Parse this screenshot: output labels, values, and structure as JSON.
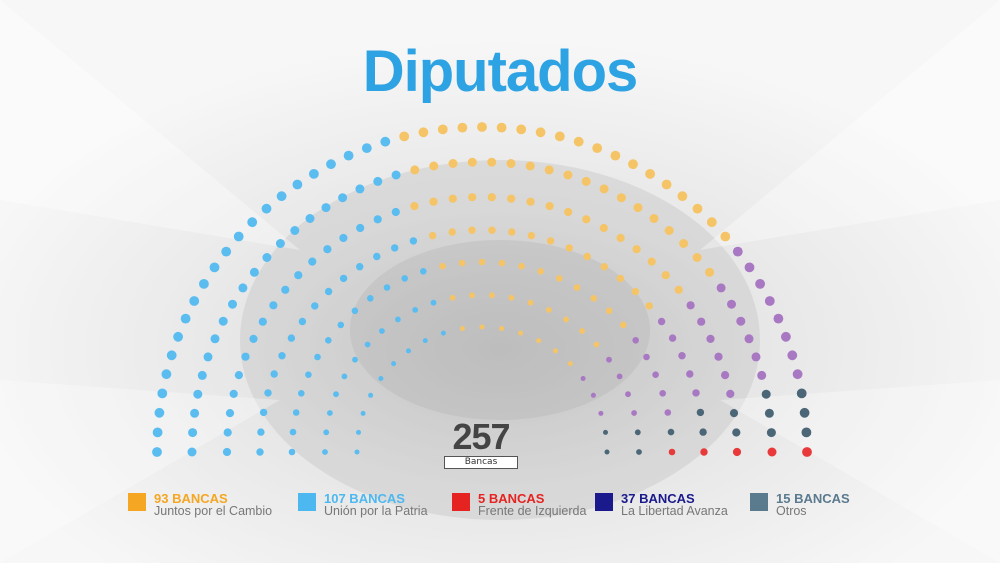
{
  "title": "Diputados",
  "total": {
    "value": "257",
    "unit": "Bancas"
  },
  "colors": {
    "juntos": "#f5a623",
    "union": "#4db8f0",
    "izquierda": "#e52421",
    "libertad": "#1a1a8c",
    "otros": "#5a7a8e",
    "title": "#2ea3e3"
  },
  "legend": [
    {
      "count_label": "93 BANCAS",
      "name": "Juntos por el Cambio",
      "color": "#f5a623",
      "dot": "#f5c466"
    },
    {
      "count_label": "107 BANCAS",
      "name": "Unión por la Patria",
      "color": "#4db8f0",
      "dot": "#5bbcf0"
    },
    {
      "count_label": "5 BANCAS",
      "name": "Frente de Izquierda",
      "color": "#e52421",
      "dot": "#e83a3a"
    },
    {
      "count_label": "37 BANCAS",
      "name": "La Libertad Avanza",
      "color": "#1a1a8c",
      "dot": "#a878c2"
    },
    {
      "count_label": "15 BANCAS",
      "name": "Otros",
      "color": "#5a7a8e",
      "dot": "#4b6777"
    }
  ],
  "chart_data": {
    "type": "hemicycle",
    "title": "Diputados",
    "total_seats": 257,
    "series": [
      {
        "name": "Unión por la Patria",
        "seats": 107
      },
      {
        "name": "Juntos por el Cambio",
        "seats": 93
      },
      {
        "name": "La Libertad Avanza",
        "seats": 37
      },
      {
        "name": "Otros",
        "seats": 15
      },
      {
        "name": "Frente de Izquierda",
        "seats": 5
      }
    ]
  }
}
